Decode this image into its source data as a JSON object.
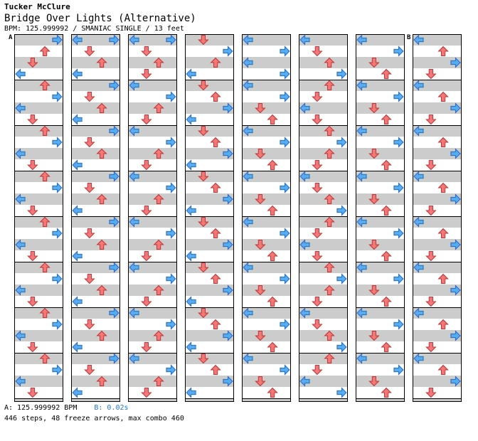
{
  "header": {
    "author": "Tucker McClure",
    "title": "Bridge Over Lights (Alternative)",
    "meta": "BPM: 125.999992 / SMANIAC SINGLE / 13 feet"
  },
  "markers": {
    "a": "A",
    "b": "B"
  },
  "footer": {
    "bpm_a": "A: 125.999992 BPM",
    "bpm_b": "B: 0.02s",
    "summary": "446 steps, 48 freeze arrows, max combo 460"
  },
  "colors": {
    "left_arrow_fill": "#5aaaf0",
    "down_arrow_fill": "#f07878",
    "up_arrow_fill": "#f07878",
    "right_arrow_fill": "#5aaaf0",
    "off_beat_fill": "#f0a0f0",
    "freeze_fill": "#a8f0a8",
    "stripe": "#cccccc",
    "measure_line": "#000000"
  },
  "columns": [
    {
      "name": "column-1",
      "notes": [
        [
          0,
          3
        ],
        [
          1,
          2
        ],
        [
          2,
          1
        ],
        [
          3,
          0
        ],
        [
          4,
          2
        ],
        [
          5,
          3
        ],
        [
          6,
          0
        ],
        [
          7,
          1
        ],
        [
          8,
          2
        ],
        [
          9,
          3
        ],
        [
          10,
          0
        ],
        [
          11,
          1
        ],
        [
          12,
          2
        ],
        [
          13,
          3
        ],
        [
          14,
          0
        ],
        [
          15,
          1
        ],
        [
          16,
          2
        ],
        [
          17,
          3
        ],
        [
          18,
          0
        ],
        [
          19,
          1
        ],
        [
          20,
          2
        ],
        [
          21,
          3
        ],
        [
          22,
          0
        ],
        [
          23,
          1
        ],
        [
          24,
          2
        ],
        [
          25,
          3
        ],
        [
          26,
          0
        ],
        [
          27,
          1
        ],
        [
          28,
          2
        ],
        [
          29,
          3
        ],
        [
          30,
          0
        ],
        [
          31,
          1
        ]
      ]
    },
    {
      "name": "column-2",
      "notes": [
        [
          0,
          0
        ],
        [
          0,
          3
        ],
        [
          1,
          1
        ],
        [
          2,
          2
        ],
        [
          3,
          0
        ],
        [
          4,
          3
        ],
        [
          5,
          1
        ],
        [
          6,
          2
        ],
        [
          7,
          0
        ],
        [
          8,
          3
        ],
        [
          9,
          1
        ],
        [
          10,
          2
        ],
        [
          11,
          0
        ],
        [
          12,
          3
        ],
        [
          13,
          1
        ],
        [
          14,
          2
        ],
        [
          15,
          0
        ],
        [
          16,
          3
        ],
        [
          17,
          1
        ],
        [
          18,
          2
        ],
        [
          19,
          0
        ],
        [
          20,
          3
        ],
        [
          21,
          1
        ],
        [
          22,
          2
        ],
        [
          23,
          0
        ],
        [
          24,
          3
        ],
        [
          25,
          1
        ],
        [
          26,
          2
        ],
        [
          27,
          0
        ],
        [
          28,
          3
        ],
        [
          29,
          1
        ],
        [
          30,
          2
        ],
        [
          31,
          0
        ]
      ]
    },
    {
      "name": "column-3",
      "notes": [
        [
          0,
          0
        ],
        [
          0,
          3
        ],
        [
          1,
          1
        ],
        [
          2,
          2
        ],
        [
          3,
          1
        ],
        [
          4,
          0
        ],
        [
          5,
          3
        ],
        [
          6,
          2
        ],
        [
          7,
          1
        ],
        [
          8,
          0
        ],
        [
          9,
          3
        ],
        [
          10,
          2
        ],
        [
          11,
          1
        ],
        [
          12,
          0
        ],
        [
          13,
          3
        ],
        [
          14,
          2
        ],
        [
          15,
          1
        ],
        [
          16,
          0
        ],
        [
          17,
          3
        ],
        [
          18,
          2
        ],
        [
          19,
          1
        ],
        [
          20,
          0
        ],
        [
          21,
          3
        ],
        [
          22,
          2
        ],
        [
          23,
          1
        ],
        [
          24,
          0
        ],
        [
          25,
          3
        ],
        [
          26,
          2
        ],
        [
          27,
          1
        ],
        [
          28,
          0
        ],
        [
          29,
          3
        ],
        [
          30,
          2
        ],
        [
          31,
          1
        ]
      ]
    },
    {
      "name": "column-4",
      "notes": [
        [
          0,
          1
        ],
        [
          1,
          3
        ],
        [
          2,
          2
        ],
        [
          3,
          0
        ],
        [
          4,
          1
        ],
        [
          5,
          2
        ],
        [
          6,
          3
        ],
        [
          7,
          0
        ],
        [
          8,
          1
        ],
        [
          9,
          2
        ],
        [
          10,
          3
        ],
        [
          11,
          0
        ],
        [
          12,
          1
        ],
        [
          13,
          2
        ],
        [
          14,
          3
        ],
        [
          15,
          0
        ],
        [
          16,
          1
        ],
        [
          17,
          2
        ],
        [
          18,
          3
        ],
        [
          19,
          0
        ],
        [
          20,
          1
        ],
        [
          21,
          2
        ],
        [
          22,
          3
        ],
        [
          23,
          0
        ],
        [
          24,
          1
        ],
        [
          25,
          2
        ],
        [
          26,
          3
        ],
        [
          27,
          0
        ],
        [
          28,
          1
        ],
        [
          29,
          2
        ],
        [
          30,
          3
        ],
        [
          31,
          0
        ]
      ]
    },
    {
      "name": "column-5",
      "notes": [
        [
          0,
          0
        ],
        [
          1,
          3
        ],
        [
          2,
          0
        ],
        [
          3,
          3
        ],
        [
          4,
          0
        ],
        [
          5,
          3
        ],
        [
          6,
          1
        ],
        [
          7,
          2
        ],
        [
          8,
          0
        ],
        [
          9,
          3
        ],
        [
          10,
          1
        ],
        [
          11,
          2
        ],
        [
          12,
          0
        ],
        [
          13,
          3
        ],
        [
          14,
          1
        ],
        [
          15,
          2
        ],
        [
          16,
          0
        ],
        [
          17,
          3
        ],
        [
          18,
          1
        ],
        [
          19,
          2
        ],
        [
          20,
          0
        ],
        [
          21,
          3
        ],
        [
          22,
          1
        ],
        [
          23,
          2
        ],
        [
          24,
          0
        ],
        [
          25,
          3
        ],
        [
          26,
          1
        ],
        [
          27,
          2
        ],
        [
          28,
          0
        ],
        [
          29,
          3
        ],
        [
          30,
          1
        ],
        [
          31,
          2
        ]
      ]
    },
    {
      "name": "column-6",
      "notes": [
        [
          0,
          0
        ],
        [
          1,
          1
        ],
        [
          2,
          2
        ],
        [
          3,
          3
        ],
        [
          4,
          2
        ],
        [
          5,
          1
        ],
        [
          6,
          0
        ],
        [
          7,
          1
        ],
        [
          8,
          2
        ],
        [
          9,
          3
        ],
        [
          10,
          2
        ],
        [
          11,
          1
        ],
        [
          12,
          0
        ],
        [
          13,
          1
        ],
        [
          14,
          2
        ],
        [
          15,
          3
        ],
        [
          16,
          2
        ],
        [
          17,
          1
        ],
        [
          18,
          0
        ],
        [
          19,
          1
        ],
        [
          20,
          2
        ],
        [
          21,
          3
        ],
        [
          22,
          2
        ],
        [
          23,
          1
        ],
        [
          24,
          0
        ],
        [
          25,
          1
        ],
        [
          26,
          2
        ],
        [
          27,
          3
        ],
        [
          28,
          2
        ],
        [
          29,
          1
        ],
        [
          30,
          0
        ],
        [
          31,
          3
        ]
      ]
    },
    {
      "name": "column-7",
      "notes": [
        [
          0,
          0
        ],
        [
          1,
          3
        ],
        [
          2,
          1
        ],
        [
          3,
          2
        ],
        [
          4,
          0
        ],
        [
          5,
          3
        ],
        [
          6,
          1
        ],
        [
          7,
          2
        ],
        [
          8,
          0
        ],
        [
          9,
          3
        ],
        [
          10,
          1
        ],
        [
          11,
          2
        ],
        [
          12,
          0
        ],
        [
          13,
          3
        ],
        [
          14,
          1
        ],
        [
          15,
          2
        ],
        [
          16,
          0
        ],
        [
          17,
          3
        ],
        [
          18,
          1
        ],
        [
          19,
          2
        ],
        [
          20,
          0
        ],
        [
          21,
          3
        ],
        [
          22,
          1
        ],
        [
          23,
          2
        ],
        [
          24,
          0
        ],
        [
          25,
          3
        ],
        [
          26,
          1
        ],
        [
          27,
          2
        ],
        [
          28,
          0
        ],
        [
          29,
          3
        ],
        [
          30,
          1
        ],
        [
          31,
          2
        ]
      ]
    },
    {
      "name": "column-8",
      "notes": [
        [
          0,
          0
        ],
        [
          1,
          2
        ],
        [
          2,
          3
        ],
        [
          3,
          1
        ],
        [
          4,
          0
        ],
        [
          5,
          2
        ],
        [
          6,
          3
        ],
        [
          7,
          1
        ],
        [
          8,
          0
        ],
        [
          9,
          2
        ],
        [
          10,
          3
        ],
        [
          11,
          1
        ],
        [
          12,
          0
        ],
        [
          13,
          2
        ],
        [
          14,
          3
        ],
        [
          15,
          1
        ],
        [
          16,
          0
        ],
        [
          17,
          2
        ],
        [
          18,
          3
        ],
        [
          19,
          1
        ],
        [
          20,
          0
        ],
        [
          21,
          2
        ],
        [
          22,
          3
        ],
        [
          23,
          1
        ],
        [
          24,
          0
        ],
        [
          25,
          2
        ],
        [
          26,
          3
        ],
        [
          27,
          1
        ],
        [
          28,
          0
        ],
        [
          29,
          2
        ],
        [
          30,
          3
        ],
        [
          31,
          1
        ]
      ]
    }
  ]
}
